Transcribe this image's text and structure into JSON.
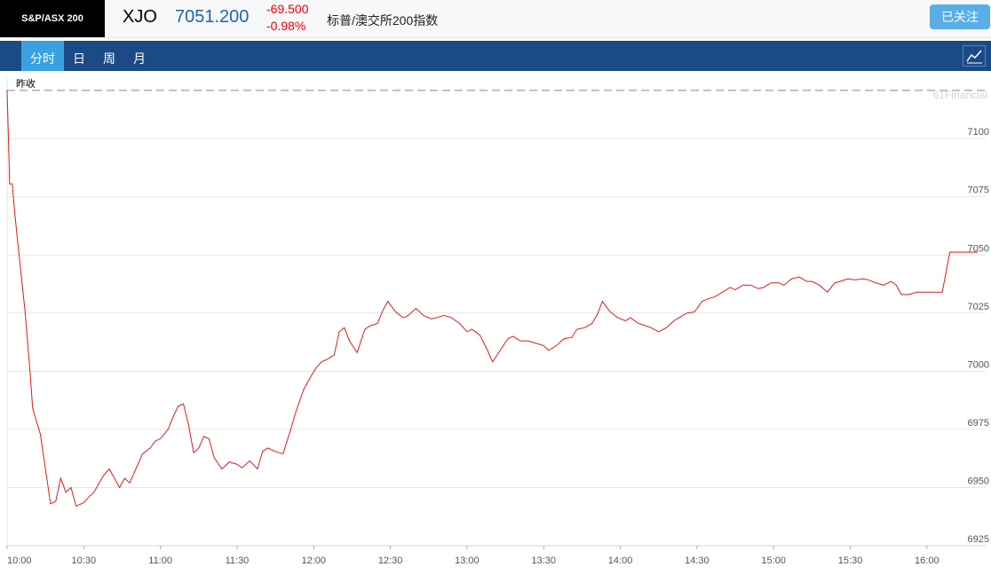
{
  "header": {
    "logo": "S&P/ASX 200",
    "symbol": "XJO",
    "price": "7051.200",
    "change": "-69.500",
    "change_pct": "-0.98%",
    "name": "标普/澳交所200指数",
    "follow_button": "已关注"
  },
  "tabs": [
    "分时",
    "日",
    "周",
    "月"
  ],
  "active_tab": 0,
  "chart_data": {
    "type": "line",
    "watermark": "61Financial",
    "prev_close_label": "昨收",
    "prev_close": 7120.7,
    "xlim": [
      "10:00",
      "16:23"
    ],
    "xticks": [
      "10:00",
      "10:30",
      "11:00",
      "11:30",
      "12:00",
      "12:30",
      "13:00",
      "13:30",
      "14:00",
      "14:30",
      "15:00",
      "15:30",
      "16:00"
    ],
    "ylim": [
      6925,
      7126
    ],
    "yticks": [
      6925,
      6950,
      6975,
      7000,
      7025,
      7050,
      7075,
      7100
    ],
    "grid": true,
    "x": [
      "10:00",
      "10:01",
      "10:02",
      "10:03",
      "10:04",
      "10:07",
      "10:09",
      "10:10",
      "10:13",
      "10:15",
      "10:17",
      "10:19",
      "10:21",
      "10:23",
      "10:25",
      "10:27",
      "10:30",
      "10:32",
      "10:34",
      "10:36",
      "10:38",
      "10:40",
      "10:42",
      "10:44",
      "10:46",
      "10:48",
      "10:51",
      "10:53",
      "10:56",
      "10:58",
      "11:00",
      "11:03",
      "11:05",
      "11:07",
      "11:09",
      "11:11",
      "11:13",
      "11:15",
      "11:17",
      "11:19",
      "11:21",
      "11:24",
      "11:27",
      "11:30",
      "11:32",
      "11:35",
      "11:38",
      "11:40",
      "11:42",
      "11:45",
      "11:48",
      "11:51",
      "11:53",
      "11:56",
      "11:59",
      "12:01",
      "12:03",
      "12:05",
      "12:08",
      "12:10",
      "12:12",
      "12:14",
      "12:17",
      "12:20",
      "12:22",
      "12:25",
      "12:27",
      "12:29",
      "12:32",
      "12:35",
      "12:37",
      "12:40",
      "12:43",
      "12:46",
      "12:48",
      "12:51",
      "12:54",
      "12:57",
      "13:00",
      "13:02",
      "13:05",
      "13:08",
      "13:10",
      "13:13",
      "13:16",
      "13:18",
      "13:21",
      "13:24",
      "13:27",
      "13:30",
      "13:32",
      "13:35",
      "13:38",
      "13:41",
      "13:43",
      "13:46",
      "13:49",
      "13:51",
      "13:53",
      "13:56",
      "13:59",
      "14:02",
      "14:04",
      "14:07",
      "14:10",
      "14:12",
      "14:15",
      "14:18",
      "14:21",
      "14:23",
      "14:26",
      "14:29",
      "14:32",
      "14:34",
      "14:37",
      "14:40",
      "14:43",
      "14:45",
      "14:48",
      "14:51",
      "14:54",
      "14:56",
      "14:59",
      "15:02",
      "15:04",
      "15:07",
      "15:10",
      "15:13",
      "15:15",
      "15:18",
      "15:21",
      "15:24",
      "15:26",
      "15:29",
      "15:32",
      "15:35",
      "15:37",
      "15:40",
      "15:43",
      "15:46",
      "15:48",
      "15:50",
      "15:53",
      "15:56",
      "15:59",
      "16:06",
      "16:09",
      "16:20"
    ],
    "series": [
      {
        "name": "XJO",
        "color": "#d81e1e",
        "values": [
          7121,
          7080.5,
          7080.5,
          7068,
          7057,
          7026,
          6999.6,
          6984,
          6973,
          6958,
          6943,
          6944,
          6954,
          6948,
          6950,
          6942,
          6943.5,
          6946,
          6948,
          6952,
          6955.6,
          6958,
          6954,
          6950,
          6954,
          6952,
          6959.5,
          6964.5,
          6967,
          6970,
          6971,
          6975,
          6980.5,
          6985,
          6986,
          6977,
          6965,
          6967,
          6972,
          6971,
          6963,
          6958,
          6961,
          6960,
          6958.5,
          6961.5,
          6958,
          6965.5,
          6967,
          6965.5,
          6964.5,
          6975,
          6982.5,
          6992,
          6998,
          7001.5,
          7004,
          7005,
          7007,
          7017,
          7018.7,
          7013,
          7008,
          7018,
          7019.5,
          7020.6,
          7026,
          7030,
          7025.6,
          7023,
          7024,
          7027,
          7024,
          7022.5,
          7023,
          7024,
          7023,
          7020.6,
          7017,
          7018,
          7015.6,
          7009,
          7004,
          7009,
          7014,
          7015,
          7013,
          7013,
          7012,
          7011,
          7009,
          7011,
          7014,
          7014.5,
          7018,
          7018.7,
          7020.6,
          7024.4,
          7030,
          7025.6,
          7023,
          7021.7,
          7023,
          7020.6,
          7019.5,
          7018.7,
          7017,
          7018.7,
          7021.7,
          7023,
          7025,
          7025.5,
          7030,
          7031,
          7032,
          7034,
          7036,
          7035,
          7037,
          7037,
          7035.5,
          7036,
          7038,
          7038,
          7037,
          7039.7,
          7040.5,
          7038.6,
          7038.6,
          7037,
          7034,
          7038,
          7038.6,
          7039.7,
          7039.3,
          7039.7,
          7039.3,
          7038,
          7037,
          7038.6,
          7037,
          7033,
          7033,
          7034,
          7034,
          7034,
          7051.2,
          7051.2
        ]
      }
    ]
  }
}
